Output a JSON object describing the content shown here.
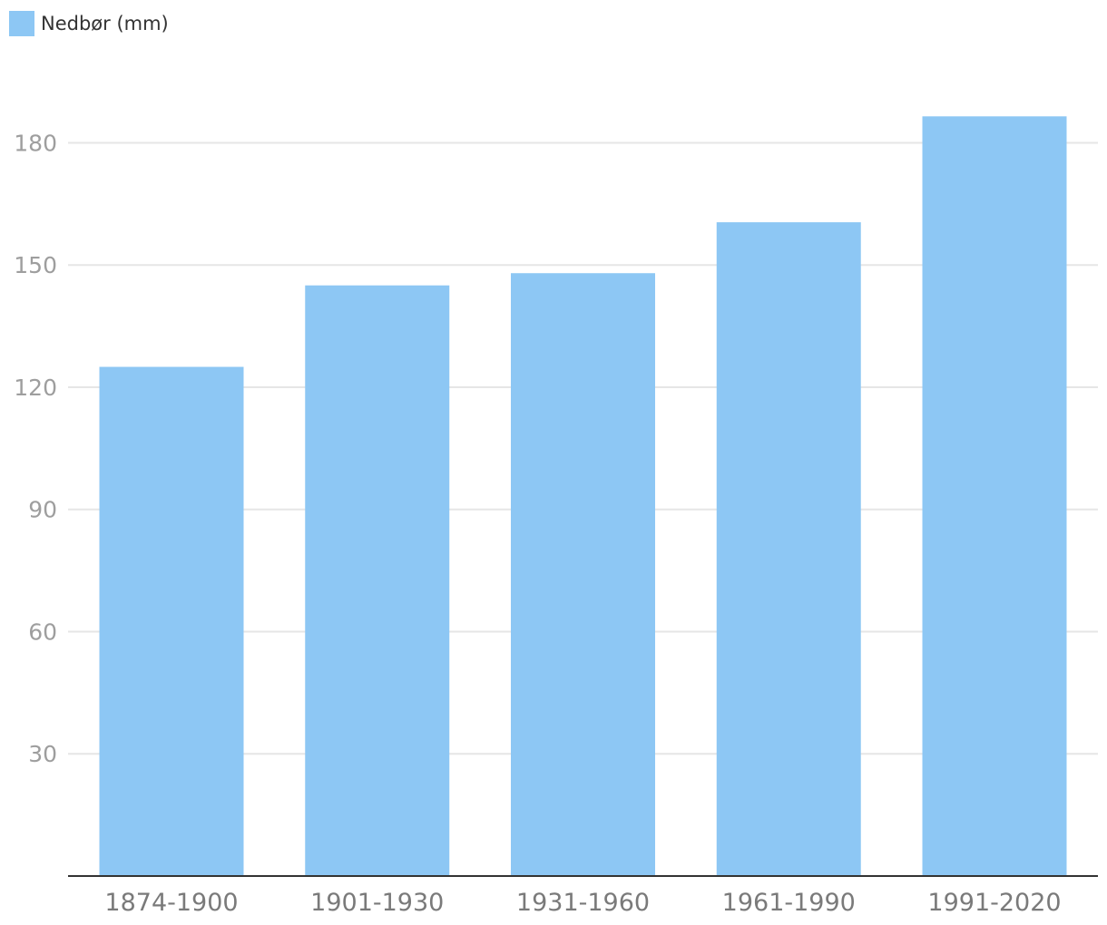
{
  "chart_data": {
    "type": "bar",
    "categories": [
      "1874-1900",
      "1901-1930",
      "1931-1960",
      "1961-1990",
      "1991-2020"
    ],
    "series": [
      {
        "name": "Nedbør (mm)",
        "values": [
          125,
          145,
          148,
          160.5,
          186.5
        ],
        "color": "#8dc7f4"
      }
    ],
    "yticks": [
      30,
      60,
      90,
      120,
      150,
      180
    ],
    "ylim": [
      0,
      210
    ],
    "grid": true,
    "legend": "top-left",
    "title": "",
    "xlabel": "",
    "ylabel": ""
  },
  "legend": {
    "label": "Nedbør (mm)",
    "color": "#8dc7f4"
  },
  "colors": {
    "grid": "#e6e6e6",
    "axis": "#333333"
  }
}
